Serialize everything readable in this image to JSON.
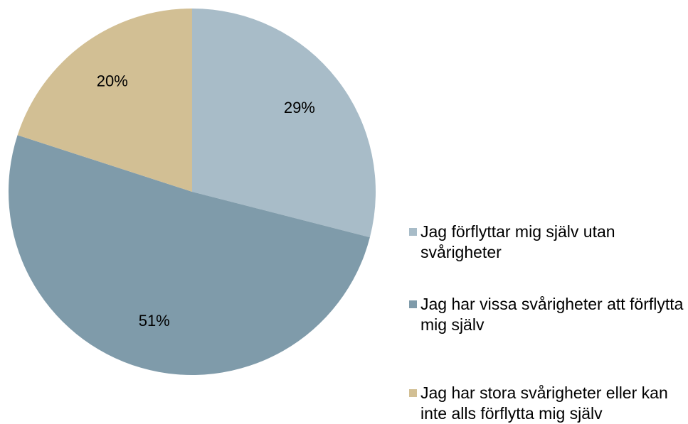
{
  "chart_data": {
    "type": "pie",
    "categories": [
      "Jag förflyttar mig själv utan svårigheter",
      "Jag har vissa svårigheter att förflytta mig själv",
      "Jag har stora svårigheter eller kan inte alls förflytta mig själv"
    ],
    "values": [
      29,
      51,
      20
    ],
    "value_labels": [
      "29%",
      "51%",
      "20%"
    ],
    "colors": [
      "#a8bcc8",
      "#7f9baa",
      "#d2bf94"
    ],
    "legend": "right"
  }
}
